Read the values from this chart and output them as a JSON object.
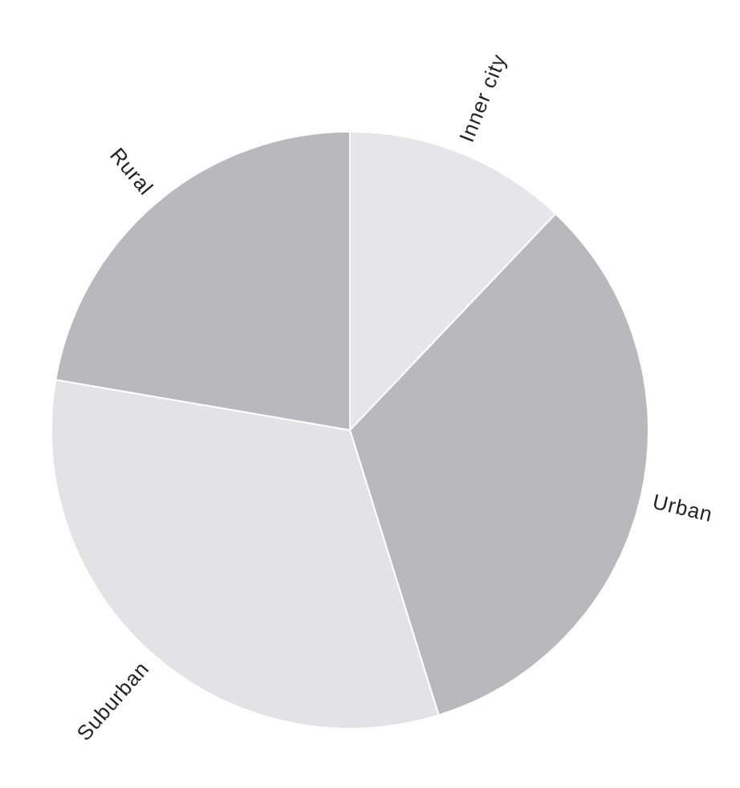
{
  "chart_data": {
    "type": "pie",
    "categories": [
      "Inner city",
      "Urban",
      "Suburban",
      "Rural"
    ],
    "values": [
      12.1,
      33.1,
      32.5,
      22.3
    ],
    "colors": [
      "#e6e6e8",
      "#b9b9bd",
      "#e3e3e5",
      "#b9b9bd"
    ],
    "legend": false
  }
}
